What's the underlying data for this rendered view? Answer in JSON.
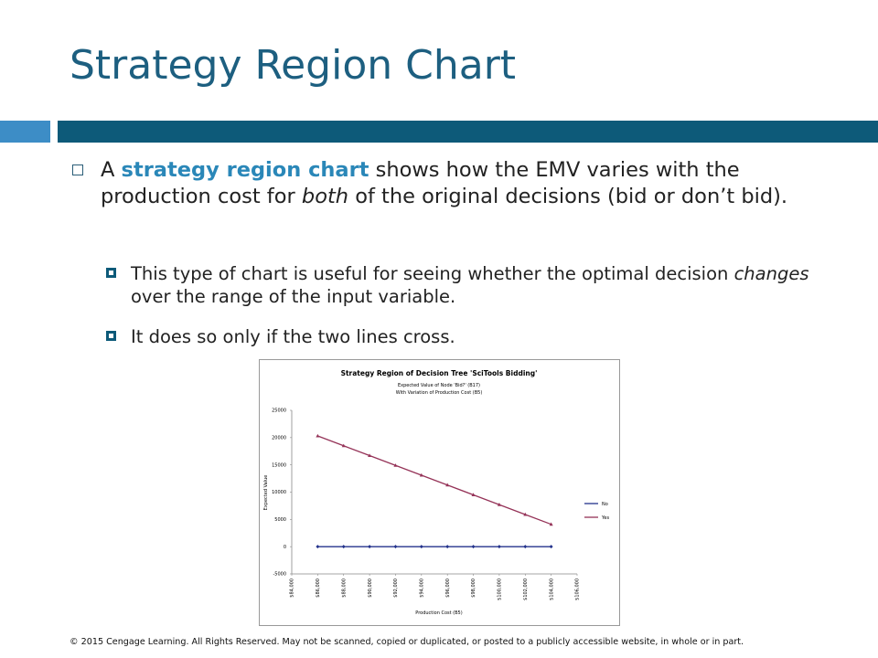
{
  "slide": {
    "title": "Strategy Region Chart",
    "bullets": [
      {
        "parts": [
          "A ",
          "strategy region chart",
          " shows how the EMV varies with the production cost for ",
          "both",
          " of the original decisions (bid or don’t bid)."
        ]
      },
      {
        "parts": [
          "This type of chart is useful for seeing whether the optimal decision ",
          "changes",
          " over the range of the input variable."
        ]
      },
      {
        "parts": [
          "It does so only if the two lines cross."
        ]
      }
    ],
    "footer": "© 2015 Cengage Learning. All Rights Reserved. May not be scanned, copied or duplicated, or posted to a publicly accessible website, in whole or in part."
  },
  "chart_data": {
    "type": "line",
    "title": "Strategy Region of Decision Tree 'SciTools Bidding'",
    "subtitle": [
      "Expected Value of Node 'Bid?' (B17)",
      "With Variation of Production Cost (B5)"
    ],
    "x_label": "Production Cost (B5)",
    "y_label": "Expected Value",
    "x": [
      86000,
      88000,
      90000,
      92000,
      94000,
      96000,
      98000,
      100000,
      102000,
      104000
    ],
    "series": [
      {
        "name": "No",
        "color": "#24338c",
        "values": [
          0,
          0,
          0,
          0,
          0,
          0,
          0,
          0,
          0,
          0
        ]
      },
      {
        "name": "Yes",
        "color": "#953358",
        "values": [
          20300,
          18500,
          16700,
          14900,
          13100,
          11300,
          9500,
          7700,
          5900,
          4100
        ]
      }
    ],
    "xlim": [
      84000,
      106000
    ],
    "xticks": [
      {
        "value": 84000,
        "label": "$84,000"
      },
      {
        "value": 86000,
        "label": "$86,000"
      },
      {
        "value": 88000,
        "label": "$88,000"
      },
      {
        "value": 90000,
        "label": "$90,000"
      },
      {
        "value": 92000,
        "label": "$92,000"
      },
      {
        "value": 94000,
        "label": "$94,000"
      },
      {
        "value": 96000,
        "label": "$96,000"
      },
      {
        "value": 98000,
        "label": "$98,000"
      },
      {
        "value": 100000,
        "label": "$100,000"
      },
      {
        "value": 102000,
        "label": "$102,000"
      },
      {
        "value": 104000,
        "label": "$104,000"
      },
      {
        "value": 106000,
        "label": "$106,000"
      }
    ],
    "ylim": [
      -5000,
      25000
    ],
    "yticks": [
      -5000,
      0,
      5000,
      10000,
      15000,
      20000,
      25000
    ],
    "grid": false,
    "legend": "right"
  }
}
